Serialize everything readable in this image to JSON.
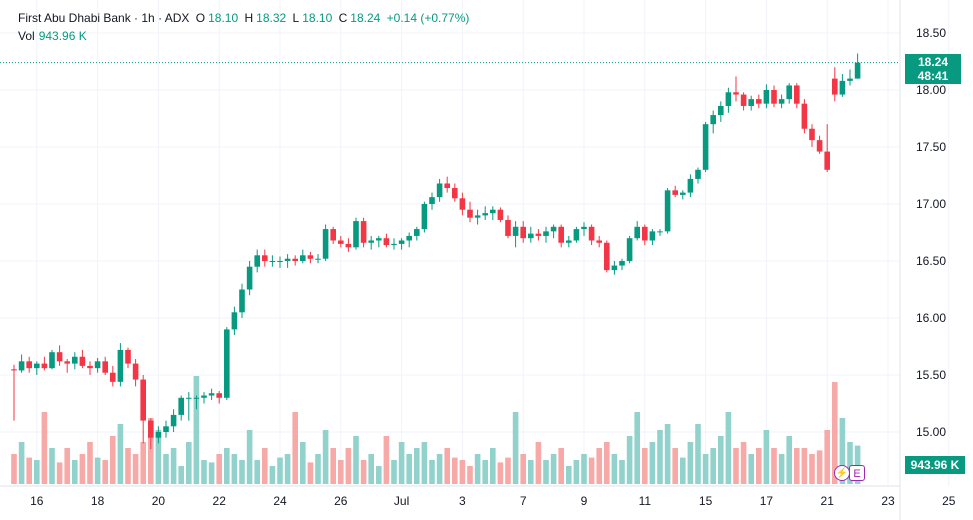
{
  "header": {
    "symbol": "First Abu Dhabi Bank · 1h · ADX",
    "o_label": "O",
    "o_value": "18.10",
    "h_label": "H",
    "h_value": "18.32",
    "l_label": "L",
    "l_value": "18.10",
    "c_label": "C",
    "c_value": "18.24",
    "change": "+0.14 (+0.77%)",
    "vol_label": "Vol",
    "vol_value": "943.96 K"
  },
  "price_tag": {
    "price": "18.24",
    "countdown": "48:41"
  },
  "volume_tag": "943.96 K",
  "badges": {
    "earnings": "E",
    "dividend_icon": "bolt-icon"
  },
  "colors": {
    "up": "#089981",
    "down": "#f23645",
    "vol_up": "#92d2cc",
    "vol_down": "#f7a9a7"
  },
  "chart_data": {
    "type": "candlestick",
    "y_ticks": [
      "15.00",
      "15.50",
      "16.00",
      "16.50",
      "17.00",
      "17.50",
      "18.00",
      "18.50"
    ],
    "ylim": [
      14.6,
      18.65
    ],
    "x_ticks": [
      {
        "label": "16",
        "i": 3
      },
      {
        "label": "18",
        "i": 11
      },
      {
        "label": "20",
        "i": 19
      },
      {
        "label": "22",
        "i": 27
      },
      {
        "label": "24",
        "i": 35
      },
      {
        "label": "26",
        "i": 43
      },
      {
        "label": "Jul",
        "i": 51
      },
      {
        "label": "3",
        "i": 59
      },
      {
        "label": "7",
        "i": 67
      },
      {
        "label": "9",
        "i": 75
      },
      {
        "label": "11",
        "i": 83
      },
      {
        "label": "15",
        "i": 91
      },
      {
        "label": "17",
        "i": 99
      },
      {
        "label": "21",
        "i": 107
      },
      {
        "label": "23",
        "i": 115
      },
      {
        "label": "25",
        "i": 123
      }
    ],
    "last_price": 18.24,
    "bars": [
      [
        15.55,
        15.59,
        15.1,
        15.54,
        0.25
      ],
      [
        15.54,
        15.68,
        15.52,
        15.62,
        0.35
      ],
      [
        15.62,
        15.66,
        15.52,
        15.56,
        0.22
      ],
      [
        15.56,
        15.62,
        15.5,
        15.6,
        0.2
      ],
      [
        15.6,
        15.66,
        15.54,
        15.56,
        0.6
      ],
      [
        15.56,
        15.72,
        15.55,
        15.7,
        0.3
      ],
      [
        15.7,
        15.76,
        15.58,
        15.62,
        0.18
      ],
      [
        15.62,
        15.64,
        15.52,
        15.6,
        0.3
      ],
      [
        15.6,
        15.7,
        15.55,
        15.66,
        0.2
      ],
      [
        15.66,
        15.72,
        15.56,
        15.58,
        0.25
      ],
      [
        15.58,
        15.62,
        15.5,
        15.56,
        0.35
      ],
      [
        15.56,
        15.65,
        15.52,
        15.62,
        0.22
      ],
      [
        15.62,
        15.66,
        15.5,
        15.52,
        0.2
      ],
      [
        15.52,
        15.58,
        15.4,
        15.44,
        0.4
      ],
      [
        15.44,
        15.78,
        15.4,
        15.72,
        0.5
      ],
      [
        15.72,
        15.74,
        15.56,
        15.6,
        0.3
      ],
      [
        15.6,
        15.64,
        15.4,
        15.46,
        0.25
      ],
      [
        15.46,
        15.5,
        14.9,
        15.1,
        0.35
      ],
      [
        15.1,
        15.12,
        14.85,
        14.95,
        0.55
      ],
      [
        14.95,
        15.05,
        14.9,
        15.0,
        0.45
      ],
      [
        15.0,
        15.1,
        14.95,
        15.05,
        0.25
      ],
      [
        15.05,
        15.2,
        15.0,
        15.15,
        0.3
      ],
      [
        15.15,
        15.32,
        15.1,
        15.3,
        0.15
      ],
      [
        15.3,
        15.35,
        15.1,
        15.3,
        0.35
      ],
      [
        15.3,
        15.32,
        15.2,
        15.3,
        0.9
      ],
      [
        15.3,
        15.35,
        15.25,
        15.32,
        0.2
      ],
      [
        15.32,
        15.38,
        15.28,
        15.34,
        0.18
      ],
      [
        15.34,
        15.36,
        15.25,
        15.3,
        0.25
      ],
      [
        15.3,
        15.92,
        15.28,
        15.9,
        0.3
      ],
      [
        15.9,
        16.1,
        15.85,
        16.05,
        0.25
      ],
      [
        16.05,
        16.3,
        16.0,
        16.25,
        0.2
      ],
      [
        16.25,
        16.5,
        16.2,
        16.45,
        0.45
      ],
      [
        16.45,
        16.6,
        16.4,
        16.55,
        0.2
      ],
      [
        16.55,
        16.6,
        16.45,
        16.5,
        0.3
      ],
      [
        16.5,
        16.55,
        16.45,
        16.5,
        0.15
      ],
      [
        16.5,
        16.54,
        16.44,
        16.5,
        0.22
      ],
      [
        16.5,
        16.56,
        16.44,
        16.52,
        0.25
      ],
      [
        16.52,
        16.55,
        16.46,
        16.5,
        0.6
      ],
      [
        16.5,
        16.6,
        16.48,
        16.55,
        0.35
      ],
      [
        16.55,
        16.58,
        16.48,
        16.52,
        0.18
      ],
      [
        16.52,
        16.56,
        16.48,
        16.52,
        0.25
      ],
      [
        16.52,
        16.82,
        16.5,
        16.78,
        0.45
      ],
      [
        16.78,
        16.8,
        16.65,
        16.68,
        0.3
      ],
      [
        16.68,
        16.72,
        16.62,
        16.65,
        0.2
      ],
      [
        16.65,
        16.7,
        16.58,
        16.62,
        0.3
      ],
      [
        16.62,
        16.88,
        16.6,
        16.85,
        0.4
      ],
      [
        16.85,
        16.88,
        16.62,
        16.66,
        0.2
      ],
      [
        16.66,
        16.72,
        16.6,
        16.68,
        0.25
      ],
      [
        16.68,
        16.72,
        16.62,
        16.7,
        0.15
      ],
      [
        16.7,
        16.74,
        16.62,
        16.64,
        0.4
      ],
      [
        16.64,
        16.7,
        16.6,
        16.65,
        0.2
      ],
      [
        16.65,
        16.7,
        16.6,
        16.68,
        0.35
      ],
      [
        16.68,
        16.75,
        16.62,
        16.72,
        0.25
      ],
      [
        16.72,
        16.8,
        16.68,
        16.78,
        0.3
      ],
      [
        16.78,
        17.02,
        16.75,
        17.0,
        0.35
      ],
      [
        17.0,
        17.1,
        16.95,
        17.06,
        0.2
      ],
      [
        17.06,
        17.22,
        17.02,
        17.18,
        0.25
      ],
      [
        17.18,
        17.24,
        17.1,
        17.14,
        0.3
      ],
      [
        17.14,
        17.18,
        17.02,
        17.05,
        0.22
      ],
      [
        17.05,
        17.1,
        16.9,
        16.95,
        0.2
      ],
      [
        16.95,
        17.02,
        16.84,
        16.88,
        0.15
      ],
      [
        16.88,
        16.95,
        16.82,
        16.9,
        0.25
      ],
      [
        16.9,
        16.98,
        16.86,
        16.92,
        0.2
      ],
      [
        16.92,
        16.98,
        16.86,
        16.95,
        0.3
      ],
      [
        16.95,
        16.97,
        16.84,
        16.86,
        0.18
      ],
      [
        16.86,
        16.9,
        16.7,
        16.72,
        0.22
      ],
      [
        16.72,
        16.85,
        16.62,
        16.8,
        0.6
      ],
      [
        16.8,
        16.85,
        16.66,
        16.7,
        0.25
      ],
      [
        16.7,
        16.8,
        16.66,
        16.74,
        0.2
      ],
      [
        16.74,
        16.78,
        16.68,
        16.72,
        0.35
      ],
      [
        16.72,
        16.8,
        16.66,
        16.76,
        0.2
      ],
      [
        16.76,
        16.82,
        16.7,
        16.8,
        0.25
      ],
      [
        16.8,
        16.82,
        16.62,
        16.66,
        0.3
      ],
      [
        16.66,
        16.72,
        16.62,
        16.68,
        0.15
      ],
      [
        16.68,
        16.8,
        16.66,
        16.78,
        0.2
      ],
      [
        16.78,
        16.84,
        16.72,
        16.8,
        0.25
      ],
      [
        16.8,
        16.82,
        16.64,
        16.68,
        0.22
      ],
      [
        16.68,
        16.72,
        16.62,
        16.66,
        0.3
      ],
      [
        16.66,
        16.68,
        16.4,
        16.42,
        0.35
      ],
      [
        16.42,
        16.5,
        16.38,
        16.46,
        0.25
      ],
      [
        16.46,
        16.52,
        16.42,
        16.5,
        0.2
      ],
      [
        16.5,
        16.72,
        16.48,
        16.7,
        0.4
      ],
      [
        16.7,
        16.85,
        16.68,
        16.8,
        0.6
      ],
      [
        16.8,
        16.82,
        16.64,
        16.68,
        0.3
      ],
      [
        16.68,
        16.78,
        16.64,
        16.76,
        0.35
      ],
      [
        16.76,
        16.78,
        16.72,
        16.76,
        0.45
      ],
      [
        16.76,
        17.14,
        16.74,
        17.12,
        0.5
      ],
      [
        17.12,
        17.16,
        17.06,
        17.08,
        0.3
      ],
      [
        17.08,
        17.12,
        17.04,
        17.1,
        0.22
      ],
      [
        17.1,
        17.26,
        17.06,
        17.22,
        0.35
      ],
      [
        17.22,
        17.32,
        17.18,
        17.3,
        0.5
      ],
      [
        17.3,
        17.72,
        17.28,
        17.7,
        0.25
      ],
      [
        17.7,
        17.82,
        17.62,
        17.78,
        0.3
      ],
      [
        17.78,
        17.9,
        17.72,
        17.86,
        0.4
      ],
      [
        17.86,
        18.02,
        17.8,
        17.98,
        0.6
      ],
      [
        17.98,
        18.12,
        17.9,
        17.96,
        0.3
      ],
      [
        17.96,
        17.98,
        17.82,
        17.86,
        0.35
      ],
      [
        17.86,
        17.95,
        17.82,
        17.92,
        0.25
      ],
      [
        17.92,
        17.96,
        17.84,
        17.88,
        0.3
      ],
      [
        17.88,
        18.05,
        17.84,
        18.0,
        0.45
      ],
      [
        18.0,
        18.04,
        17.85,
        17.88,
        0.3
      ],
      [
        17.88,
        17.96,
        17.84,
        17.92,
        0.25
      ],
      [
        17.92,
        18.06,
        17.88,
        18.04,
        0.4
      ],
      [
        18.04,
        18.06,
        17.84,
        17.88,
        0.3
      ],
      [
        17.88,
        17.92,
        17.62,
        17.66,
        0.3
      ],
      [
        17.66,
        17.7,
        17.5,
        17.56,
        0.25
      ],
      [
        17.56,
        17.6,
        17.44,
        17.46,
        0.28
      ],
      [
        17.46,
        17.7,
        17.28,
        17.3,
        0.45
      ],
      [
        18.1,
        18.2,
        17.9,
        17.96,
        0.85
      ],
      [
        17.96,
        18.14,
        17.94,
        18.08,
        0.55
      ],
      [
        18.08,
        18.18,
        18.04,
        18.1,
        0.35
      ],
      [
        18.1,
        18.32,
        18.1,
        18.24,
        0.32
      ]
    ]
  }
}
